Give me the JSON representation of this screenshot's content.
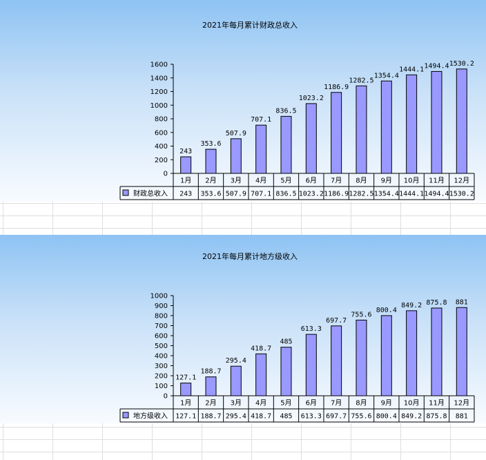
{
  "chart_data": [
    {
      "type": "bar",
      "title": "2021年每月累计财政总收入",
      "categories": [
        "1月",
        "2月",
        "3月",
        "4月",
        "5月",
        "6月",
        "7月",
        "8月",
        "9月",
        "10月",
        "11月",
        "12月"
      ],
      "series": [
        {
          "name": "财政总收入",
          "values": [
            243,
            353.6,
            507.9,
            707.1,
            836.5,
            1023.2,
            1186.9,
            1282.5,
            1354.4,
            1444.1,
            1494.4,
            1530.2
          ]
        }
      ],
      "yticks": [
        0,
        200,
        400,
        600,
        800,
        1000,
        1200,
        1400,
        1600
      ],
      "ylim": [
        0,
        1600
      ],
      "data_table": true,
      "bar_color": "#9999ff",
      "grid": false
    },
    {
      "type": "bar",
      "title": "2021年每月累计地方级收入",
      "categories": [
        "1月",
        "2月",
        "3月",
        "4月",
        "5月",
        "6月",
        "7月",
        "8月",
        "9月",
        "10月",
        "11月",
        "12月"
      ],
      "series": [
        {
          "name": "地方级收入",
          "values": [
            127.1,
            188.7,
            295.4,
            418.7,
            485,
            613.3,
            697.7,
            755.6,
            800.4,
            849.2,
            875.8,
            881
          ]
        }
      ],
      "yticks": [
        0,
        100,
        200,
        300,
        400,
        500,
        600,
        700,
        800,
        900,
        1000
      ],
      "ylim": [
        0,
        1000
      ],
      "data_table": true,
      "bar_color": "#9999ff",
      "grid": false
    }
  ]
}
